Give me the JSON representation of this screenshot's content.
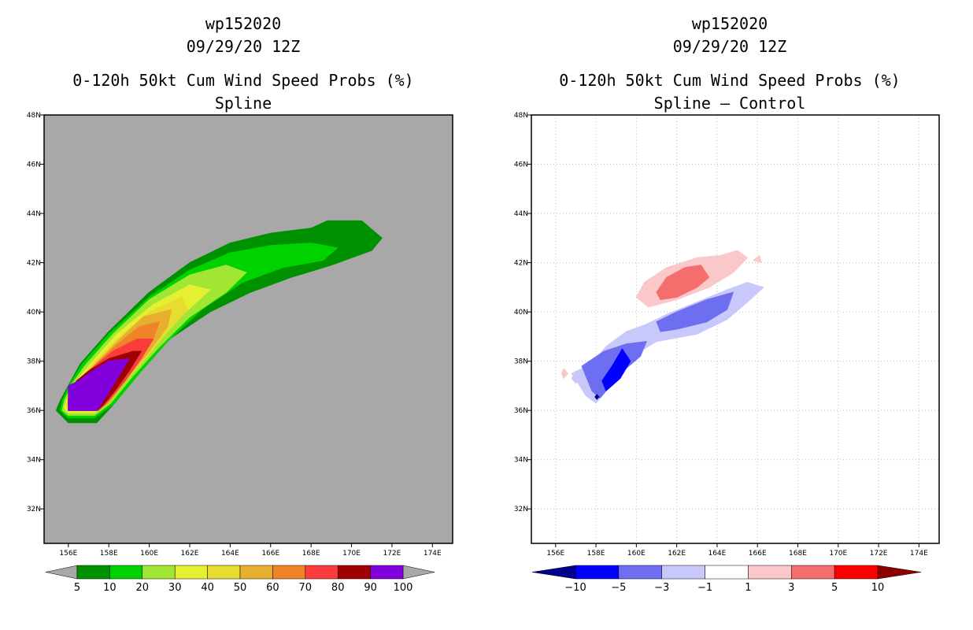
{
  "left_panel": {
    "storm": "wp152020",
    "datetime": "09/29/20 12Z",
    "product": "0-120h 50kt Cum Wind Speed Probs (%)",
    "subtitle": "Spline"
  },
  "right_panel": {
    "storm": "wp152020",
    "datetime": "09/29/20 12Z",
    "product": "0-120h 50kt Cum Wind Speed Probs (%)",
    "subtitle": "Spline – Control"
  },
  "chart_data": [
    {
      "type": "heatmap",
      "title": "0-120h 50kt Cum Wind Speed Probs (%) — Spline",
      "x_ticks": [
        "156E",
        "158E",
        "160E",
        "162E",
        "164E",
        "166E",
        "168E",
        "170E",
        "172E",
        "174E"
      ],
      "y_ticks": [
        "48N",
        "46N",
        "44N",
        "42N",
        "40N",
        "38N",
        "36N",
        "34N",
        "32N"
      ],
      "xlim": [
        154.8,
        175.0
      ],
      "ylim": [
        30.6,
        48.0
      ],
      "background_color": "#a8a8a8",
      "colorbar": {
        "labels": [
          "5",
          "10",
          "20",
          "30",
          "40",
          "50",
          "60",
          "70",
          "80",
          "90",
          "100"
        ],
        "colors": [
          "#009100",
          "#00d200",
          "#a0e632",
          "#e6f032",
          "#e6dc32",
          "#e6af2d",
          "#f08228",
          "#fa3c3c",
          "#a00000",
          "#8200dc"
        ]
      },
      "contours": [
        {
          "level": 5,
          "color": "#009100",
          "polygon": [
            [
              155.6,
              36.4
            ],
            [
              156.0,
              37.0
            ],
            [
              156.6,
              37.9
            ],
            [
              158.0,
              39.2
            ],
            [
              160.0,
              40.8
            ],
            [
              162.0,
              42.0
            ],
            [
              164.0,
              42.8
            ],
            [
              166.0,
              43.2
            ],
            [
              168.0,
              43.4
            ],
            [
              168.8,
              43.7
            ],
            [
              170.5,
              43.7
            ],
            [
              171.5,
              43.0
            ],
            [
              171.0,
              42.5
            ],
            [
              169.0,
              41.9
            ],
            [
              167.0,
              41.4
            ],
            [
              165.0,
              40.8
            ],
            [
              163.0,
              40.0
            ],
            [
              161.0,
              38.9
            ],
            [
              159.5,
              37.7
            ],
            [
              158.4,
              36.4
            ],
            [
              157.4,
              35.5
            ],
            [
              156.0,
              35.5
            ],
            [
              155.4,
              36.0
            ]
          ]
        },
        {
          "level": 10,
          "color": "#00d200",
          "polygon": [
            [
              155.7,
              36.4
            ],
            [
              156.1,
              37.1
            ],
            [
              156.7,
              37.9
            ],
            [
              158.0,
              39.1
            ],
            [
              160.0,
              40.6
            ],
            [
              162.0,
              41.7
            ],
            [
              164.0,
              42.4
            ],
            [
              166.0,
              42.7
            ],
            [
              168.0,
              42.8
            ],
            [
              169.3,
              42.6
            ],
            [
              168.6,
              42.1
            ],
            [
              166.6,
              41.8
            ],
            [
              164.6,
              41.2
            ],
            [
              162.6,
              40.1
            ],
            [
              160.9,
              38.8
            ],
            [
              159.5,
              37.5
            ],
            [
              158.3,
              36.3
            ],
            [
              157.3,
              35.7
            ],
            [
              156.0,
              35.7
            ],
            [
              155.6,
              36.0
            ]
          ]
        },
        {
          "level": 20,
          "color": "#a0e632",
          "polygon": [
            [
              155.8,
              36.4
            ],
            [
              156.2,
              37.1
            ],
            [
              156.8,
              37.8
            ],
            [
              158.2,
              39.1
            ],
            [
              160.0,
              40.5
            ],
            [
              162.0,
              41.5
            ],
            [
              163.8,
              41.9
            ],
            [
              164.8,
              41.6
            ],
            [
              163.8,
              40.8
            ],
            [
              162.0,
              39.8
            ],
            [
              160.4,
              38.5
            ],
            [
              159.2,
              37.4
            ],
            [
              158.1,
              36.3
            ],
            [
              157.3,
              35.8
            ],
            [
              156.0,
              35.8
            ],
            [
              155.7,
              36.0
            ]
          ]
        },
        {
          "level": 30,
          "color": "#e6f032",
          "polygon": [
            [
              155.9,
              36.4
            ],
            [
              156.3,
              37.1
            ],
            [
              156.9,
              37.7
            ],
            [
              158.4,
              39.1
            ],
            [
              160.2,
              40.3
            ],
            [
              162.0,
              41.1
            ],
            [
              163.0,
              40.9
            ],
            [
              161.8,
              40.0
            ],
            [
              160.3,
              38.8
            ],
            [
              159.1,
              37.6
            ],
            [
              158.0,
              36.5
            ],
            [
              157.3,
              35.9
            ],
            [
              156.0,
              35.9
            ],
            [
              155.8,
              36.1
            ]
          ]
        },
        {
          "level": 40,
          "color": "#e6dc32",
          "polygon": [
            [
              156.0,
              36.5
            ],
            [
              156.4,
              37.1
            ],
            [
              157.0,
              37.7
            ],
            [
              158.4,
              38.9
            ],
            [
              160.0,
              40.0
            ],
            [
              161.6,
              40.6
            ],
            [
              161.9,
              40.1
            ],
            [
              160.8,
              39.1
            ],
            [
              159.8,
              38.1
            ],
            [
              158.8,
              37.2
            ],
            [
              157.9,
              36.3
            ],
            [
              157.3,
              36.0
            ],
            [
              156.0,
              36.0
            ],
            [
              155.9,
              36.2
            ]
          ]
        },
        {
          "level": 50,
          "color": "#e6af2d",
          "polygon": [
            [
              156.0,
              36.5
            ],
            [
              156.4,
              37.2
            ],
            [
              157.0,
              37.6
            ],
            [
              158.3,
              38.7
            ],
            [
              159.7,
              39.8
            ],
            [
              161.1,
              40.1
            ],
            [
              160.9,
              39.4
            ],
            [
              160.0,
              38.4
            ],
            [
              159.0,
              37.4
            ],
            [
              158.0,
              36.3
            ],
            [
              157.3,
              36.0
            ],
            [
              156.0,
              36.0
            ]
          ]
        },
        {
          "level": 60,
          "color": "#f08228",
          "polygon": [
            [
              156.0,
              36.5
            ],
            [
              156.4,
              37.2
            ],
            [
              157.0,
              37.6
            ],
            [
              158.3,
              38.6
            ],
            [
              159.5,
              39.4
            ],
            [
              160.5,
              39.6
            ],
            [
              160.2,
              38.9
            ],
            [
              159.4,
              37.9
            ],
            [
              158.4,
              36.9
            ],
            [
              157.8,
              36.2
            ],
            [
              157.3,
              36.0
            ],
            [
              156.0,
              36.0
            ]
          ]
        },
        {
          "level": 70,
          "color": "#fa3c3c",
          "polygon": [
            [
              156.0,
              36.5
            ],
            [
              156.4,
              37.2
            ],
            [
              157.0,
              37.6
            ],
            [
              158.2,
              38.4
            ],
            [
              159.4,
              38.9
            ],
            [
              160.2,
              38.9
            ],
            [
              159.6,
              38.1
            ],
            [
              158.8,
              37.2
            ],
            [
              158.0,
              36.4
            ],
            [
              157.5,
              36.0
            ],
            [
              156.0,
              36.0
            ]
          ]
        },
        {
          "level": 80,
          "color": "#a00000",
          "polygon": [
            [
              156.0,
              36.5
            ],
            [
              156.4,
              37.2
            ],
            [
              157.0,
              37.6
            ],
            [
              158.0,
              38.1
            ],
            [
              159.2,
              38.4
            ],
            [
              159.6,
              38.4
            ],
            [
              159.0,
              37.6
            ],
            [
              158.3,
              36.8
            ],
            [
              157.7,
              36.2
            ],
            [
              157.4,
              36.0
            ],
            [
              156.0,
              36.0
            ]
          ]
        },
        {
          "level": 90,
          "color": "#8200dc",
          "polygon": [
            [
              156.0,
              36.0
            ],
            [
              156.0,
              37.0
            ],
            [
              156.5,
              37.2
            ],
            [
              157.0,
              37.5
            ],
            [
              158.0,
              38.0
            ],
            [
              159.0,
              38.1
            ],
            [
              158.5,
              37.4
            ],
            [
              157.9,
              36.6
            ],
            [
              157.4,
              36.0
            ]
          ]
        }
      ]
    },
    {
      "type": "heatmap",
      "title": "0-120h 50kt Cum Wind Speed Probs (%) — Spline – Control",
      "x_ticks": [
        "156E",
        "158E",
        "160E",
        "162E",
        "164E",
        "166E",
        "168E",
        "170E",
        "172E",
        "174E"
      ],
      "y_ticks": [
        "48N",
        "46N",
        "44N",
        "42N",
        "40N",
        "38N",
        "36N",
        "34N",
        "32N"
      ],
      "xlim": [
        154.8,
        175.0
      ],
      "ylim": [
        30.6,
        48.0
      ],
      "background_color": "#ffffff",
      "colorbar": {
        "labels": [
          "-10",
          "-5",
          "-3",
          "-1",
          "1",
          "3",
          "5",
          "10"
        ],
        "colors": [
          "#00008c",
          "#0000ff",
          "#6e6ef0",
          "#c8c8fa",
          "#ffffff",
          "#fac8c8",
          "#f56e6e",
          "#ff0000",
          "#8c0000"
        ]
      },
      "contours": [
        {
          "level": 1,
          "color": "#fac8c8",
          "polygon": [
            [
              160.0,
              40.6
            ],
            [
              160.4,
              41.2
            ],
            [
              161.5,
              41.8
            ],
            [
              163.0,
              42.2
            ],
            [
              164.2,
              42.3
            ],
            [
              165.0,
              42.5
            ],
            [
              165.5,
              42.2
            ],
            [
              164.8,
              41.6
            ],
            [
              163.6,
              41.0
            ],
            [
              162.0,
              40.5
            ],
            [
              160.6,
              40.2
            ]
          ]
        },
        {
          "level": 1,
          "color": "#fac8c8",
          "polygon": [
            [
              165.8,
              42.1
            ],
            [
              166.1,
              42.3
            ],
            [
              166.2,
              42.0
            ]
          ]
        },
        {
          "level": 1,
          "color": "#fac8c8",
          "polygon": [
            [
              156.3,
              37.5
            ],
            [
              156.4,
              37.7
            ],
            [
              156.6,
              37.5
            ],
            [
              156.4,
              37.3
            ]
          ]
        },
        {
          "level": 3,
          "color": "#f56e6e",
          "polygon": [
            [
              161.0,
              40.8
            ],
            [
              161.5,
              41.4
            ],
            [
              162.4,
              41.8
            ],
            [
              163.2,
              41.9
            ],
            [
              163.6,
              41.4
            ],
            [
              163.0,
              41.0
            ],
            [
              162.0,
              40.6
            ],
            [
              161.2,
              40.5
            ]
          ]
        },
        {
          "level": -1,
          "color": "#c8c8fa",
          "polygon": [
            [
              156.8,
              37.5
            ],
            [
              157.8,
              37.9
            ],
            [
              158.5,
              38.6
            ],
            [
              159.5,
              39.2
            ],
            [
              160.5,
              39.5
            ],
            [
              161.5,
              39.9
            ],
            [
              163.0,
              40.4
            ],
            [
              164.5,
              40.9
            ],
            [
              165.5,
              41.2
            ],
            [
              166.3,
              41.0
            ],
            [
              165.5,
              40.4
            ],
            [
              164.5,
              39.7
            ],
            [
              163.0,
              39.1
            ],
            [
              161.0,
              38.8
            ],
            [
              160.0,
              38.3
            ],
            [
              159.0,
              37.3
            ],
            [
              158.0,
              36.3
            ],
            [
              157.5,
              36.6
            ],
            [
              157.2,
              37.0
            ]
          ]
        },
        {
          "level": -1,
          "color": "#c8c8fa",
          "polygon": [
            [
              156.8,
              37.3
            ],
            [
              157.0,
              37.6
            ],
            [
              157.2,
              37.3
            ],
            [
              157.0,
              37.1
            ]
          ]
        },
        {
          "level": -3,
          "color": "#6e6ef0",
          "polygon": [
            [
              157.3,
              37.8
            ],
            [
              158.4,
              38.4
            ],
            [
              159.5,
              38.7
            ],
            [
              160.5,
              38.8
            ],
            [
              160.2,
              38.2
            ],
            [
              159.2,
              37.5
            ],
            [
              158.2,
              36.5
            ],
            [
              157.8,
              36.8
            ]
          ]
        },
        {
          "level": -3,
          "color": "#6e6ef0",
          "polygon": [
            [
              161.0,
              39.6
            ],
            [
              162.0,
              40.0
            ],
            [
              163.5,
              40.5
            ],
            [
              164.8,
              40.8
            ],
            [
              164.5,
              40.1
            ],
            [
              163.5,
              39.6
            ],
            [
              162.0,
              39.3
            ],
            [
              161.2,
              39.2
            ]
          ]
        },
        {
          "level": -5,
          "color": "#0000ff",
          "polygon": [
            [
              158.3,
              37.2
            ],
            [
              158.8,
              37.8
            ],
            [
              159.3,
              38.5
            ],
            [
              159.7,
              38.0
            ],
            [
              159.2,
              37.3
            ],
            [
              158.5,
              36.8
            ]
          ]
        },
        {
          "level": -10,
          "color": "#00008c",
          "polygon": [
            [
              157.95,
              36.55
            ],
            [
              158.05,
              36.65
            ],
            [
              158.15,
              36.55
            ],
            [
              158.05,
              36.45
            ]
          ]
        }
      ]
    }
  ]
}
